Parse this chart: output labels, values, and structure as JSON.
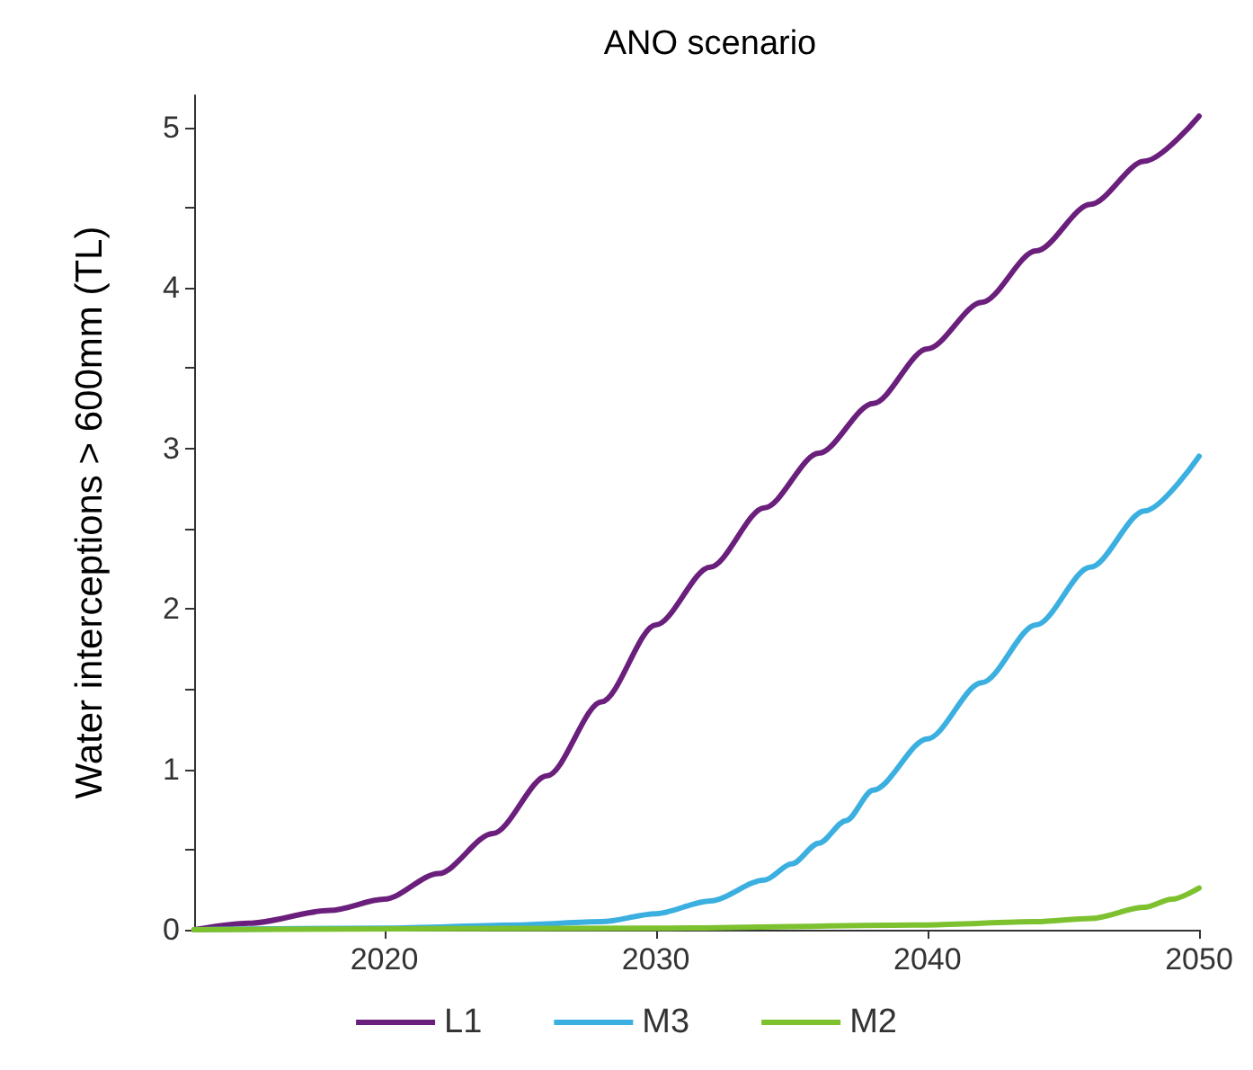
{
  "chart_data": {
    "type": "line",
    "title": "ANO scenario",
    "ylabel": "Water interceptions > 600mm (TL)",
    "xlim": [
      2013,
      2050
    ],
    "xticks": [
      2020,
      2030,
      2040,
      2050
    ],
    "ylim": [
      0,
      5.2
    ],
    "yticks": [
      0,
      {
        "value": 0.5,
        "label": null
      },
      1,
      {
        "value": 1.5,
        "label": null
      },
      2,
      {
        "value": 2.5,
        "label": null
      },
      3,
      {
        "value": 3.5,
        "label": null
      },
      4,
      {
        "value": 4.5,
        "label": null
      },
      5
    ],
    "legend": "bottom",
    "marker": "none",
    "line_style": "solid",
    "series": [
      {
        "name": "L1",
        "color": "#6b1f7c",
        "x": [
          2013,
          2015,
          2018,
          2020,
          2022,
          2024,
          2026,
          2028,
          2030,
          2032,
          2034,
          2036,
          2038,
          2040,
          2042,
          2044,
          2046,
          2048,
          2050
        ],
        "values": [
          0,
          0.04,
          0.12,
          0.19,
          0.35,
          0.6,
          0.96,
          1.42,
          1.9,
          2.26,
          2.63,
          2.97,
          3.28,
          3.62,
          3.91,
          4.23,
          4.52,
          4.79,
          5.07
        ]
      },
      {
        "name": "M3",
        "color": "#3bb0e0",
        "x": [
          2013,
          2020,
          2025,
          2028,
          2030,
          2032,
          2034,
          2035,
          2036,
          2037,
          2038,
          2040,
          2042,
          2044,
          2046,
          2048,
          2050
        ],
        "values": [
          0,
          0.01,
          0.03,
          0.05,
          0.1,
          0.18,
          0.31,
          0.41,
          0.54,
          0.68,
          0.87,
          1.19,
          1.54,
          1.9,
          2.26,
          2.61,
          2.95
        ]
      },
      {
        "name": "M2",
        "color": "#7dc12f",
        "x": [
          2013,
          2030,
          2040,
          2044,
          2046,
          2048,
          2049,
          2050
        ],
        "values": [
          0,
          0.01,
          0.03,
          0.05,
          0.07,
          0.14,
          0.19,
          0.26
        ]
      }
    ]
  }
}
